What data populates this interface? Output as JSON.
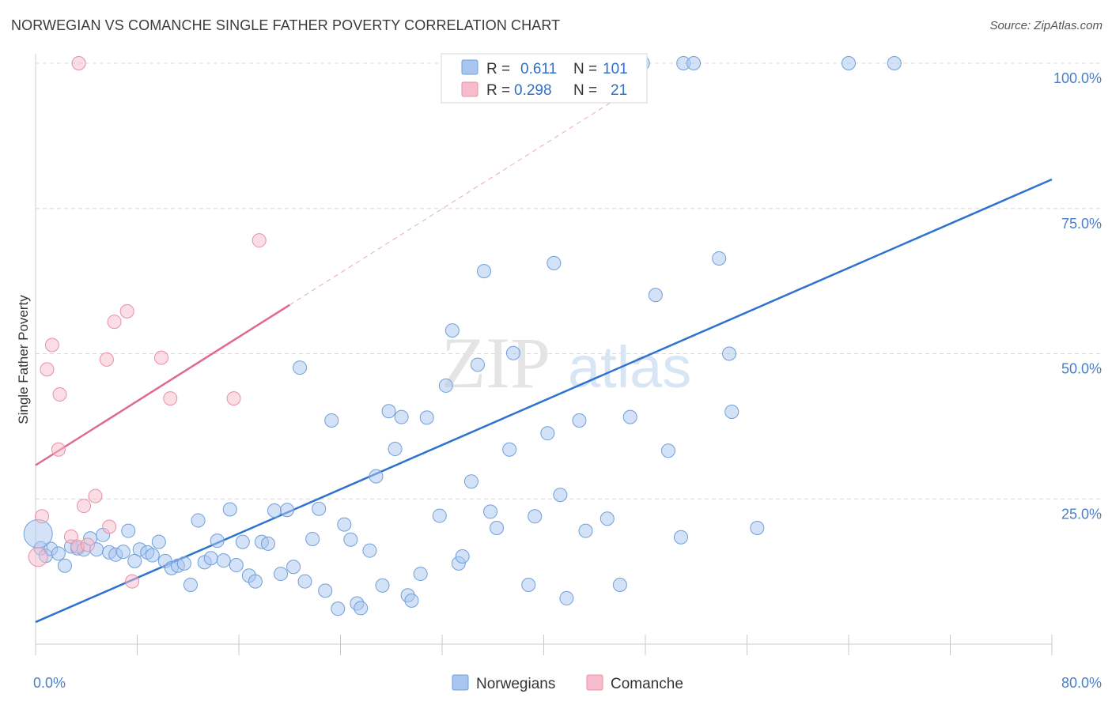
{
  "header": {
    "title": "NORWEGIAN VS COMANCHE SINGLE FATHER POVERTY CORRELATION CHART",
    "source": "Source: ZipAtlas.com"
  },
  "watermark": {
    "zip": "ZIP",
    "atlas": "atlas"
  },
  "legend_top": {
    "rows": [
      {
        "r_label": "R =",
        "r_value": "0.611",
        "n_label": "N =",
        "n_value": "101"
      },
      {
        "r_label": "R =",
        "r_value": "0.298",
        "n_label": "N =",
        "n_value": "21"
      }
    ]
  },
  "colors": {
    "norwegians_fill": "#a9c6f0",
    "norwegians_stroke": "#6f9fdc",
    "norwegians_line": "#2e72cf",
    "comanche_fill": "#f7bccb",
    "comanche_stroke": "#ea8fa8",
    "comanche_line": "#e06a8c",
    "grid": "#d8d8d8",
    "axis_label": "#4a7fc8"
  },
  "chart_data": {
    "type": "scatter",
    "title": "NORWEGIAN VS COMANCHE SINGLE FATHER POVERTY CORRELATION CHART",
    "xlabel": "",
    "ylabel": "Single Father Poverty",
    "xlim": [
      0,
      80
    ],
    "ylim": [
      0,
      100
    ],
    "x_tick_labels": [
      "0.0%",
      "80.0%"
    ],
    "y_tick_labels": [
      "25.0%",
      "50.0%",
      "75.0%",
      "100.0%"
    ],
    "y_ticks": [
      25,
      50,
      75,
      100
    ],
    "grid": true,
    "legend_position": "bottom",
    "series": [
      {
        "name": "Norwegians",
        "points": [
          [
            0.4,
            16.5
          ],
          [
            0.8,
            15.2
          ],
          [
            1.2,
            16.4
          ],
          [
            1.8,
            15.6
          ],
          [
            2.3,
            13.5
          ],
          [
            2.8,
            16.8
          ],
          [
            3.3,
            16.5
          ],
          [
            3.8,
            16.3
          ],
          [
            4.3,
            18.2
          ],
          [
            4.8,
            16.3
          ],
          [
            5.3,
            18.8
          ],
          [
            5.8,
            15.8
          ],
          [
            6.3,
            15.4
          ],
          [
            6.9,
            15.9
          ],
          [
            7.3,
            19.5
          ],
          [
            7.8,
            14.3
          ],
          [
            8.2,
            16.3
          ],
          [
            8.8,
            15.8
          ],
          [
            9.2,
            15.3
          ],
          [
            9.7,
            17.6
          ],
          [
            10.2,
            14.3
          ],
          [
            10.7,
            13.1
          ],
          [
            11.2,
            13.5
          ],
          [
            11.7,
            13.9
          ],
          [
            12.2,
            10.2
          ],
          [
            12.8,
            21.3
          ],
          [
            13.3,
            14.1
          ],
          [
            13.8,
            14.8
          ],
          [
            14.3,
            17.8
          ],
          [
            14.8,
            14.4
          ],
          [
            15.3,
            23.2
          ],
          [
            15.8,
            13.6
          ],
          [
            16.3,
            17.6
          ],
          [
            16.8,
            11.8
          ],
          [
            17.3,
            10.8
          ],
          [
            17.8,
            17.6
          ],
          [
            18.3,
            17.3
          ],
          [
            18.8,
            23.0
          ],
          [
            19.3,
            12.1
          ],
          [
            19.8,
            23.1
          ],
          [
            20.3,
            13.3
          ],
          [
            20.8,
            47.6
          ],
          [
            21.2,
            10.8
          ],
          [
            21.8,
            18.1
          ],
          [
            22.3,
            23.3
          ],
          [
            22.8,
            9.2
          ],
          [
            23.3,
            38.5
          ],
          [
            23.8,
            6.1
          ],
          [
            24.3,
            20.6
          ],
          [
            24.8,
            18.0
          ],
          [
            25.3,
            7.0
          ],
          [
            25.6,
            6.2
          ],
          [
            26.3,
            16.1
          ],
          [
            26.8,
            28.9
          ],
          [
            27.3,
            10.1
          ],
          [
            27.8,
            40.1
          ],
          [
            28.3,
            33.6
          ],
          [
            28.8,
            39.1
          ],
          [
            29.3,
            8.4
          ],
          [
            29.6,
            7.5
          ],
          [
            30.3,
            12.1
          ],
          [
            30.8,
            39.0
          ],
          [
            31.8,
            22.1
          ],
          [
            32.3,
            44.5
          ],
          [
            32.8,
            54.0
          ],
          [
            33.3,
            13.9
          ],
          [
            33.6,
            15.1
          ],
          [
            34.3,
            28.0
          ],
          [
            34.8,
            48.1
          ],
          [
            35.3,
            64.2
          ],
          [
            35.8,
            22.8
          ],
          [
            36.3,
            20.0
          ],
          [
            37.3,
            33.5
          ],
          [
            37.6,
            50.1
          ],
          [
            38.8,
            10.2
          ],
          [
            39.3,
            22.0
          ],
          [
            40.3,
            36.3
          ],
          [
            40.8,
            65.6
          ],
          [
            41.3,
            25.7
          ],
          [
            41.8,
            7.9
          ],
          [
            42.8,
            38.5
          ],
          [
            43.3,
            19.5
          ],
          [
            45.0,
            21.6
          ],
          [
            46.0,
            10.2
          ],
          [
            46.8,
            39.1
          ],
          [
            48.8,
            60.1
          ],
          [
            49.8,
            33.3
          ],
          [
            50.8,
            18.4
          ],
          [
            53.8,
            66.4
          ],
          [
            54.6,
            50.0
          ],
          [
            54.8,
            40.0
          ],
          [
            56.8,
            20.0
          ],
          [
            38.1,
            100.0
          ],
          [
            38.6,
            100.0
          ],
          [
            44.0,
            100.0
          ],
          [
            47.8,
            100.0
          ],
          [
            51.0,
            100.0
          ],
          [
            51.8,
            100.0
          ],
          [
            64.0,
            100.0
          ],
          [
            67.6,
            100.0
          ],
          [
            0.2,
            19.0
          ]
        ],
        "trend": {
          "x": [
            0,
            80
          ],
          "y": [
            3.8,
            80.0
          ]
        }
      },
      {
        "name": "Comanche",
        "points": [
          [
            3.4,
            100.0
          ],
          [
            0.5,
            22.0
          ],
          [
            0.9,
            47.3
          ],
          [
            1.3,
            51.5
          ],
          [
            1.8,
            33.5
          ],
          [
            1.9,
            43.0
          ],
          [
            2.8,
            18.5
          ],
          [
            3.3,
            16.8
          ],
          [
            3.8,
            23.8
          ],
          [
            4.1,
            17.1
          ],
          [
            4.7,
            25.5
          ],
          [
            5.8,
            20.2
          ],
          [
            6.2,
            55.5
          ],
          [
            5.6,
            49.0
          ],
          [
            7.2,
            57.3
          ],
          [
            7.6,
            10.8
          ],
          [
            9.9,
            49.3
          ],
          [
            10.6,
            42.3
          ],
          [
            15.6,
            42.3
          ],
          [
            17.6,
            69.5
          ],
          [
            0.2,
            15.0
          ]
        ],
        "trend_solid": {
          "x": [
            0,
            20
          ],
          "y": [
            30.8,
            58.4
          ]
        },
        "trend_dashed": {
          "x": [
            20,
            48
          ],
          "y": [
            58.4,
            97.0
          ]
        }
      }
    ]
  }
}
